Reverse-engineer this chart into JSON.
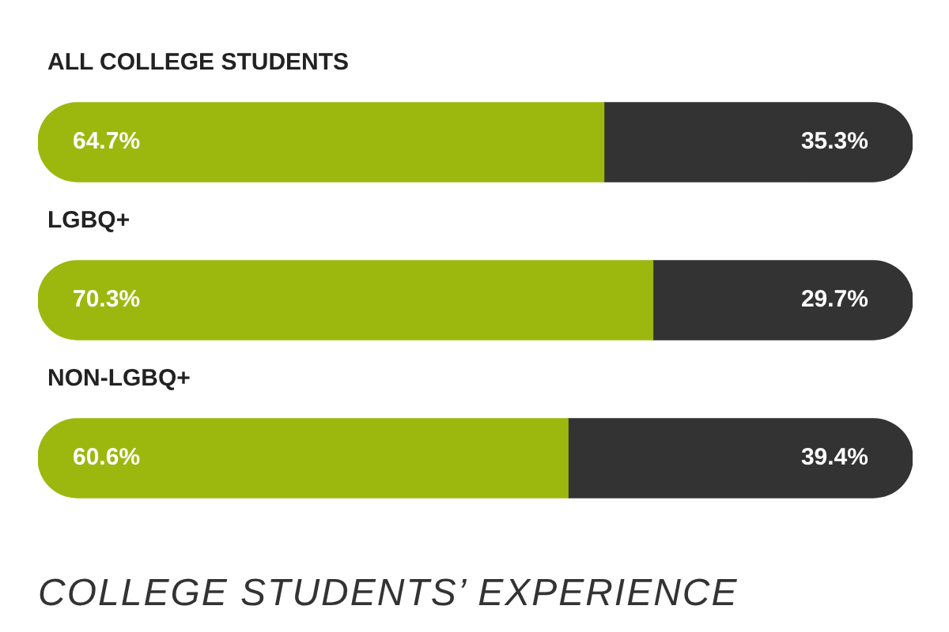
{
  "chart_data": {
    "type": "bar",
    "orientation": "horizontal",
    "stacked": true,
    "categories": [
      "ALL COLLEGE STUDENTS",
      "LGBQ+",
      "NON-LGBQ+"
    ],
    "series": [
      {
        "color": "#9cb80e",
        "values": [
          64.7,
          70.3,
          60.6
        ],
        "value_labels": [
          "64.7%",
          "70.3%",
          "60.6%"
        ]
      },
      {
        "color": "#333333",
        "values": [
          35.3,
          29.7,
          39.4
        ],
        "value_labels": [
          "35.3%",
          "29.7%",
          "39.4%"
        ]
      }
    ],
    "tick_labels": "y",
    "legend": false,
    "annotations": [
      "COLLEGE STUDENTS’ EXPERIENCE"
    ]
  }
}
